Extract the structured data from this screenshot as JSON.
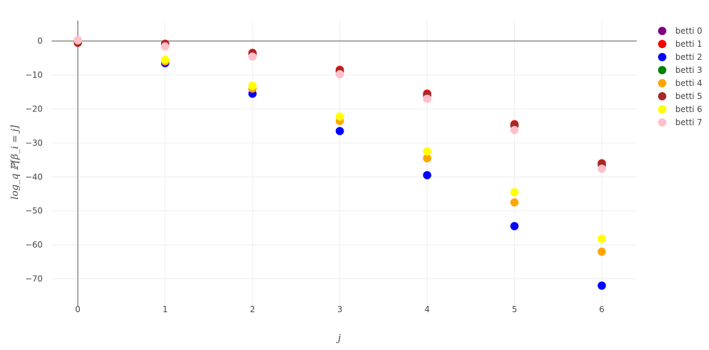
{
  "chart_data": {
    "type": "scatter",
    "title": "",
    "xlabel": "j",
    "ylabel": "log_q ℙ[β_i = j]",
    "x": [
      0,
      1,
      2,
      3,
      4,
      5,
      6
    ],
    "xlim": [
      -0.3,
      6.4
    ],
    "ylim": [
      -78,
      6
    ],
    "xticks": [
      "0",
      "1",
      "2",
      "3",
      "4",
      "5",
      "6"
    ],
    "yticks": [
      0,
      -10,
      -20,
      -30,
      -40,
      -50,
      -60,
      -70
    ],
    "ytick_labels": [
      "0",
      "−10",
      "−20",
      "−30",
      "−40",
      "−50",
      "−60",
      "−70"
    ],
    "grid": true,
    "legend_position": "top-right",
    "series": [
      {
        "name": "betti 0",
        "color": "#800080",
        "x": [
          0
        ],
        "y": [
          -0.5
        ]
      },
      {
        "name": "betti 1",
        "color": "#ff0000",
        "x": [
          0,
          1,
          2,
          3,
          4,
          5,
          6
        ],
        "y": [
          -0.4,
          -0.8,
          -3.5,
          -8.5,
          -15.5,
          -24.5,
          -36.0
        ]
      },
      {
        "name": "betti 2",
        "color": "#0000ff",
        "x": [
          0,
          1,
          2,
          3,
          4,
          5,
          6
        ],
        "y": [
          0,
          -6.5,
          -15.5,
          -26.5,
          -39.5,
          -54.5,
          -72.0
        ]
      },
      {
        "name": "betti 3",
        "color": "#008000",
        "x": [
          0,
          1,
          2,
          3,
          4,
          5,
          6
        ],
        "y": [
          0,
          -1.2,
          -4.0,
          -9.0,
          -16.0,
          -25.0,
          -36.5
        ]
      },
      {
        "name": "betti 4",
        "color": "#ffa500",
        "x": [
          0,
          1,
          2,
          3,
          4,
          5,
          6
        ],
        "y": [
          0.1,
          -6.0,
          -14.0,
          -23.5,
          -34.5,
          -47.5,
          -62.0
        ]
      },
      {
        "name": "betti 5",
        "color": "#a52a2a",
        "x": [
          0,
          1,
          2,
          3,
          4,
          5,
          6
        ],
        "y": [
          -0.3,
          -0.9,
          -3.8,
          -8.8,
          -15.8,
          -24.8,
          -36.2
        ]
      },
      {
        "name": "betti 6",
        "color": "#ffff00",
        "x": [
          0,
          1,
          2,
          3,
          4,
          5,
          6
        ],
        "y": [
          0.2,
          -5.5,
          -13.2,
          -22.2,
          -32.5,
          -44.5,
          -58.2
        ]
      },
      {
        "name": "betti 7",
        "color": "#ffc0cb",
        "x": [
          0,
          1,
          2,
          3,
          4,
          5,
          6
        ],
        "y": [
          0.3,
          -1.6,
          -4.6,
          -9.8,
          -17.0,
          -26.2,
          -37.6
        ]
      }
    ]
  }
}
